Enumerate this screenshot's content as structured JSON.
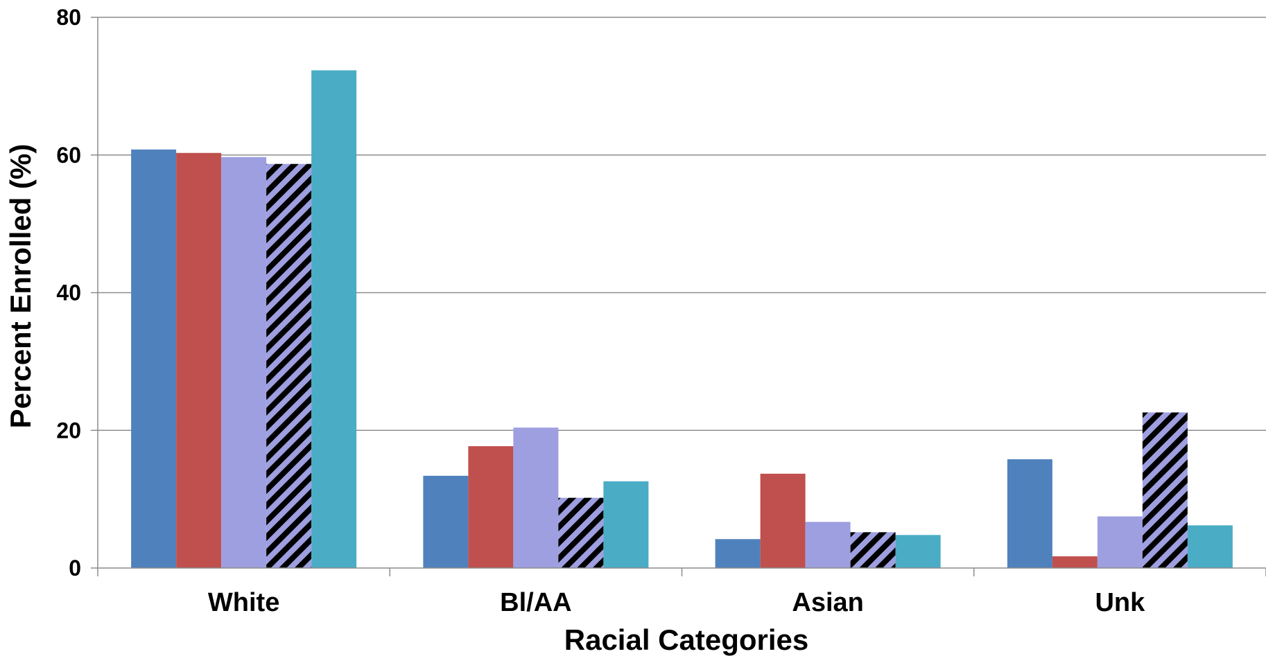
{
  "chart_data": {
    "type": "bar",
    "title": "",
    "xlabel": "Racial Categories",
    "ylabel": "Percent Enrolled (%)",
    "ylim": [
      0,
      80
    ],
    "yticks": [
      0,
      20,
      40,
      60,
      80
    ],
    "grid": true,
    "legend": "none",
    "categories": [
      "White",
      "Bl/AA",
      "Asian",
      "Unk"
    ],
    "series": [
      {
        "color": "#4F81BD",
        "pattern": "solid",
        "values": [
          60.8,
          13.4,
          4.2,
          15.8
        ]
      },
      {
        "color": "#C0504D",
        "pattern": "solid",
        "values": [
          60.3,
          17.7,
          13.7,
          1.7
        ]
      },
      {
        "color": "#9E9FE0",
        "pattern": "solid",
        "values": [
          59.7,
          20.4,
          6.7,
          7.5
        ]
      },
      {
        "color": "#9E9FE0",
        "pattern": "black-diagonal-stripes",
        "values": [
          58.7,
          10.2,
          5.2,
          22.6
        ]
      },
      {
        "color": "#4BACC6",
        "pattern": "solid",
        "values": [
          72.3,
          12.6,
          4.8,
          6.2
        ]
      }
    ]
  }
}
